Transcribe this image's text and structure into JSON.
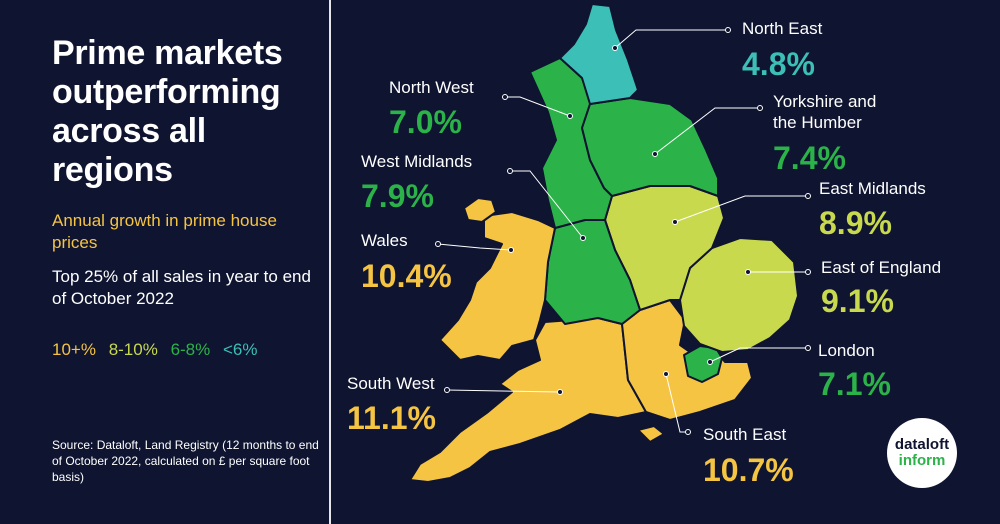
{
  "title": "Prime markets outperforming across all regions",
  "subtitle": "Annual growth in prime house prices",
  "description": "Top 25% of all sales in year to end of October 2022",
  "legend": [
    {
      "label": "10+%",
      "color": "#f5c443"
    },
    {
      "label": "8-10%",
      "color": "#c8d94e"
    },
    {
      "label": "6-8%",
      "color": "#2bb34a"
    },
    {
      "label": "<6%",
      "color": "#3bbfb6"
    }
  ],
  "source": "Source: Dataloft, Land Registry (12 months to end of October 2022, calculated on £ per square foot basis)",
  "colors": {
    "background": "#0f1430",
    "band_10_plus": "#f5c443",
    "band_8_10": "#c8d94e",
    "band_6_8": "#2bb34a",
    "band_under_6": "#3bbfb6"
  },
  "regions": {
    "north_east": {
      "label": "North East",
      "value": "4.8%",
      "color": "#3bbfb6"
    },
    "north_west": {
      "label": "North West",
      "value": "7.0%",
      "color": "#2bb34a"
    },
    "yorkshire": {
      "label": "Yorkshire and the Humber",
      "value": "7.4%",
      "color": "#2bb34a"
    },
    "west_midlands": {
      "label": "West Midlands",
      "value": "7.9%",
      "color": "#2bb34a"
    },
    "east_midlands": {
      "label": "East Midlands",
      "value": "8.9%",
      "color": "#c8d94e"
    },
    "wales": {
      "label": "Wales",
      "value": "10.4%",
      "color": "#f5c443"
    },
    "east_of_england": {
      "label": "East of England",
      "value": "9.1%",
      "color": "#c8d94e"
    },
    "london": {
      "label": "London",
      "value": "7.1%",
      "color": "#2bb34a"
    },
    "south_west": {
      "label": "South West",
      "value": "11.1%",
      "color": "#f5c443"
    },
    "south_east": {
      "label": "South East",
      "value": "10.7%",
      "color": "#f5c443"
    }
  },
  "logo": {
    "line1": "dataloft",
    "line2": "inform"
  }
}
